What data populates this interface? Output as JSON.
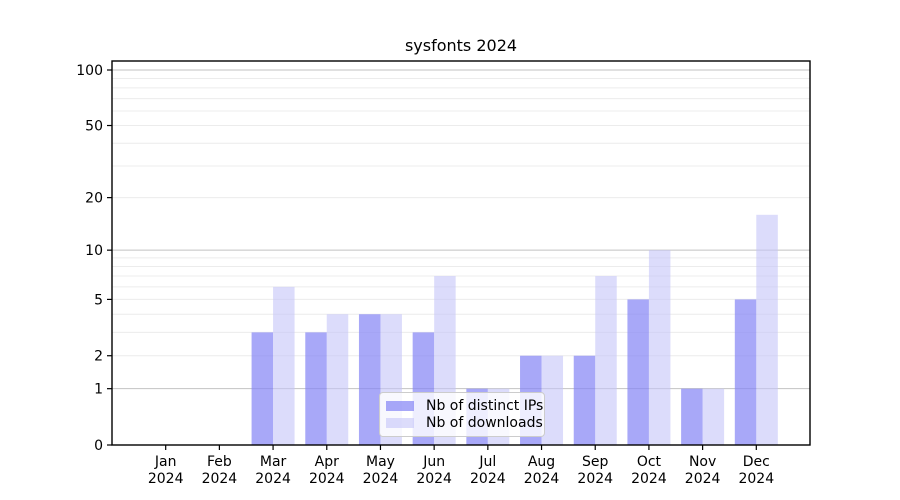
{
  "title": "sysfonts 2024",
  "chart_data": {
    "type": "bar",
    "title": "sysfonts 2024",
    "categories": [
      "Jan",
      "Feb",
      "Mar",
      "Apr",
      "May",
      "Jun",
      "Jul",
      "Aug",
      "Sep",
      "Oct",
      "Nov",
      "Dec"
    ],
    "year_label": "2024",
    "series": [
      {
        "name": "Nb of distinct IPs",
        "color": "rgba(134,134,245,0.72)",
        "values": [
          0,
          0,
          3,
          3,
          4,
          3,
          1,
          2,
          2,
          5,
          1,
          5
        ]
      },
      {
        "name": "Nb of downloads",
        "color": "rgba(197,197,248,0.6)",
        "values": [
          0,
          0,
          6,
          4,
          4,
          7,
          1,
          2,
          7,
          10,
          1,
          16
        ]
      }
    ],
    "y_scale": "log1p",
    "ylim": [
      0,
      113
    ],
    "y_ticks": [
      0,
      1,
      2,
      5,
      10,
      20,
      50,
      100
    ],
    "y_major_gridlines": [
      1,
      10,
      100
    ],
    "y_minor_gridlines": [
      2,
      3,
      4,
      5,
      6,
      7,
      8,
      9,
      20,
      30,
      40,
      50,
      60,
      70,
      80,
      90
    ],
    "grid": "on",
    "legend_entries": [
      "Nb of distinct IPs",
      "Nb of downloads"
    ],
    "legend_position": "lower center"
  },
  "colors": {
    "background": "#ffffff",
    "axis": "#000000",
    "grid_major": "#c2c2c2",
    "grid_minor": "#ececec",
    "tick_label": "#000000",
    "legend_bg": "rgba(255,255,255,0.8)",
    "legend_border": "#cccccc"
  }
}
